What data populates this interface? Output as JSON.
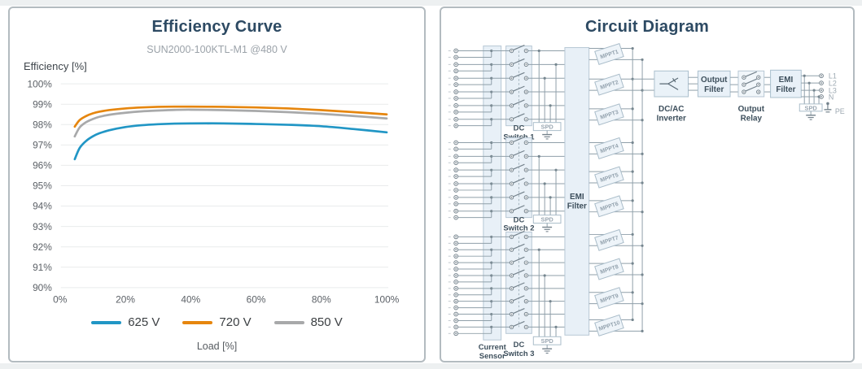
{
  "left_panel": {
    "title": "Efficiency Curve",
    "subtitle": "SUN2000-100KTL-M1 @480 V",
    "y_axis_label": "Efficiency [%]",
    "x_axis_label": "Load [%]"
  },
  "chart_data": {
    "type": "line",
    "title": "Efficiency Curve",
    "subtitle": "SUN2000-100KTL-M1 @480 V",
    "xlabel": "Load [%]",
    "ylabel": "Efficiency [%]",
    "ylim": [
      90,
      100
    ],
    "grid": "horizontal",
    "legend_position": "bottom",
    "y_ticks": [
      "100%",
      "99%",
      "98%",
      "97%",
      "96%",
      "95%",
      "94%",
      "93%",
      "92%",
      "91%",
      "90%"
    ],
    "x_ticks": [
      "0%",
      "20%",
      "40%",
      "60%",
      "80%",
      "100%"
    ],
    "x": [
      4.5,
      6,
      8,
      10,
      12,
      15,
      20,
      25,
      30,
      35,
      40,
      50,
      60,
      70,
      80,
      90,
      100
    ],
    "series": [
      {
        "name": "625 V",
        "color": "#2196c5",
        "values": [
          96.3,
          96.85,
          97.2,
          97.42,
          97.57,
          97.72,
          97.88,
          97.97,
          98.02,
          98.05,
          98.06,
          98.06,
          98.03,
          97.99,
          97.92,
          97.78,
          97.62
        ]
      },
      {
        "name": "720 V",
        "color": "#e6860e",
        "values": [
          97.9,
          98.22,
          98.42,
          98.55,
          98.63,
          98.71,
          98.79,
          98.84,
          98.87,
          98.88,
          98.88,
          98.87,
          98.84,
          98.79,
          98.71,
          98.61,
          98.5
        ]
      },
      {
        "name": "850 V",
        "color": "#a8a9aa",
        "values": [
          97.42,
          97.86,
          98.12,
          98.27,
          98.38,
          98.48,
          98.58,
          98.65,
          98.69,
          98.72,
          98.73,
          98.71,
          98.67,
          98.61,
          98.53,
          98.42,
          98.3
        ]
      }
    ]
  },
  "right_panel": {
    "title": "Circuit Diagram",
    "circuit": {
      "current_sensor": {
        "line1": "Current",
        "line2": "Sensor"
      },
      "spd_label": "SPD",
      "groups": [
        {
          "line1": "DC",
          "line2": "Switch 1",
          "pairs": 6
        },
        {
          "line1": "DC",
          "line2": "Switch 2",
          "pairs": 6
        },
        {
          "line1": "DC",
          "line2": "Switch 3",
          "pairs": 8
        }
      ],
      "dc_emi_filter": {
        "line1": "EMI",
        "line2": "Filter"
      },
      "mppts": [
        "MPPT1",
        "MPPT2",
        "MPPT3",
        "MPPT4",
        "MPPT5",
        "MPPT6",
        "MPPT7",
        "MPPT8",
        "MPPT9",
        "MPPT10"
      ],
      "inverter": {
        "line1": "DC/AC",
        "line2": "Inverter"
      },
      "output_filter": {
        "line1": "Output",
        "line2": "Filter"
      },
      "output_relay": {
        "line1": "Output",
        "line2": "Relay"
      },
      "ac_emi_filter": {
        "line1": "EMI",
        "line2": "Filter"
      },
      "ac_spd_label": "SPD",
      "terminals": [
        "L1",
        "L2",
        "L3",
        "N",
        "PE"
      ]
    }
  }
}
